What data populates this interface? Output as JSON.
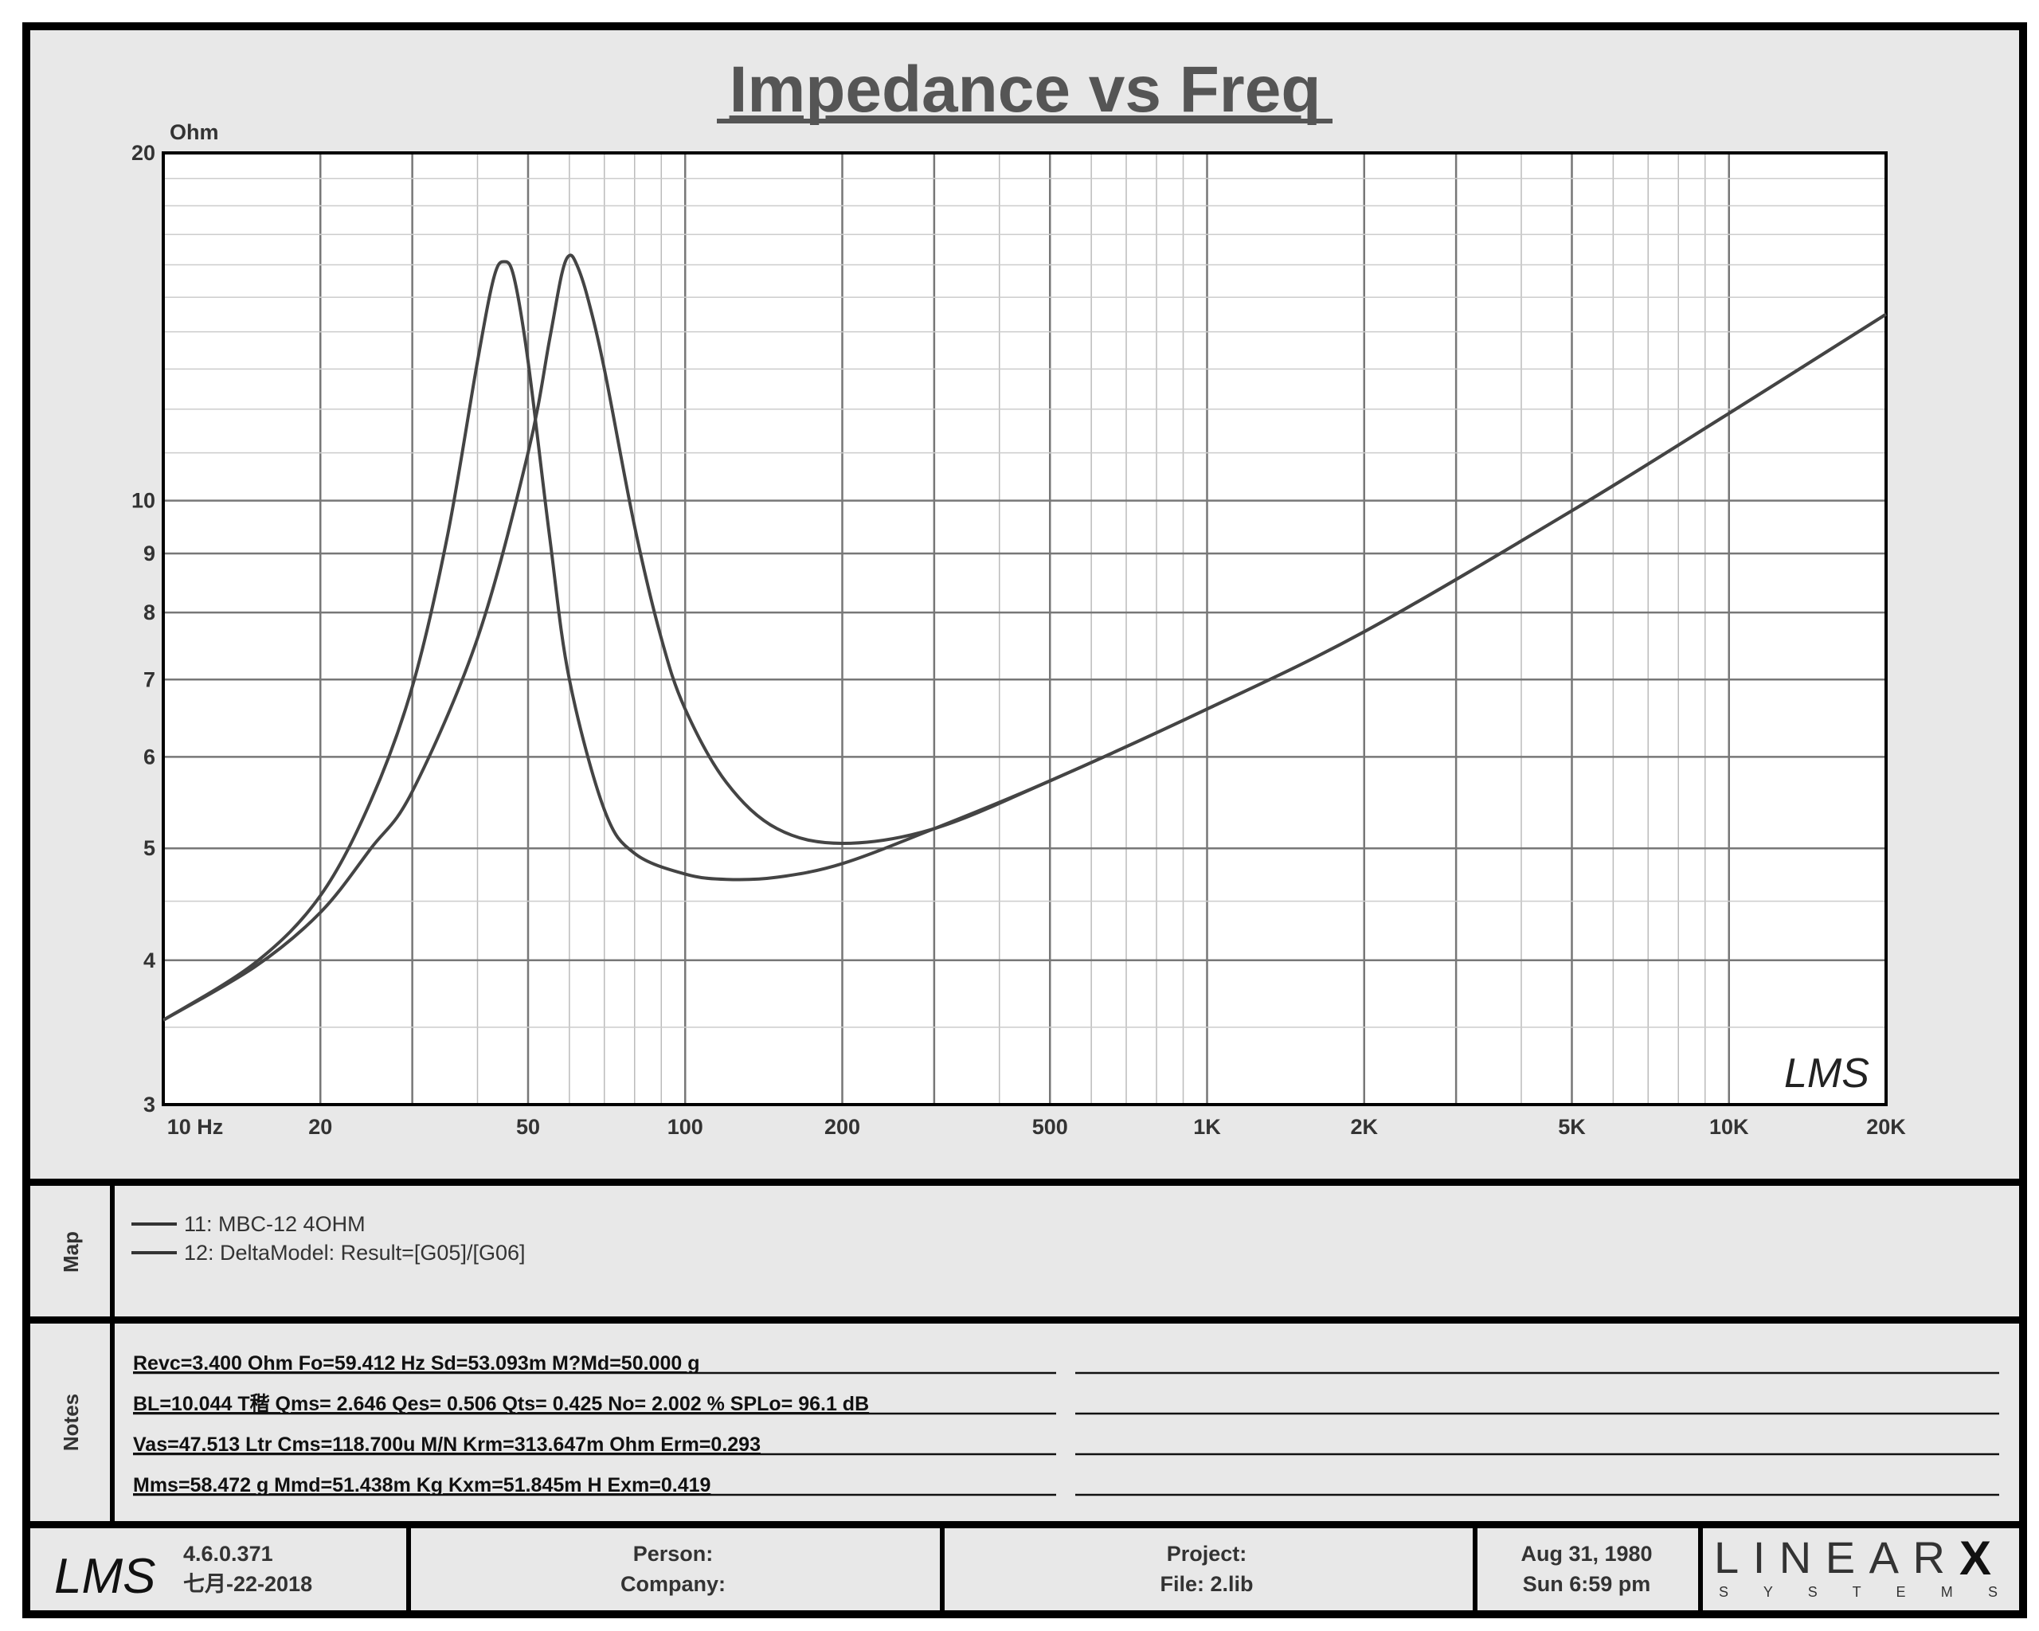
{
  "chart_data": {
    "type": "line",
    "title": "Impedance vs Freq",
    "ylabel": "Ohm",
    "xlabel": "Hz",
    "xscale": "log",
    "yscale": "log",
    "xlim": [
      10,
      20000
    ],
    "ylim": [
      3,
      20
    ],
    "grid": true,
    "x_ticks": [
      {
        "v": 10,
        "label": "10  Hz"
      },
      {
        "v": 20,
        "label": "20"
      },
      {
        "v": 50,
        "label": "50"
      },
      {
        "v": 100,
        "label": "100"
      },
      {
        "v": 200,
        "label": "200"
      },
      {
        "v": 500,
        "label": "500"
      },
      {
        "v": 1000,
        "label": "1K"
      },
      {
        "v": 2000,
        "label": "2K"
      },
      {
        "v": 5000,
        "label": "5K"
      },
      {
        "v": 10000,
        "label": "10K"
      },
      {
        "v": 20000,
        "label": "20K"
      }
    ],
    "y_ticks": [
      {
        "v": 3,
        "label": "3"
      },
      {
        "v": 4,
        "label": "4"
      },
      {
        "v": 5,
        "label": "5"
      },
      {
        "v": 6,
        "label": "6"
      },
      {
        "v": 7,
        "label": "7"
      },
      {
        "v": 8,
        "label": "8"
      },
      {
        "v": 9,
        "label": "9"
      },
      {
        "v": 10,
        "label": "10"
      },
      {
        "v": 20,
        "label": "20"
      }
    ],
    "series": [
      {
        "name": "11: MBC-12  4OHM",
        "x": [
          10,
          15,
          20,
          25,
          30,
          35,
          40,
          43,
          45,
          47,
          50,
          55,
          60,
          70,
          80,
          100,
          120,
          150,
          200,
          300,
          500,
          1000,
          2000,
          5000,
          10000,
          20000
        ],
        "y": [
          3.55,
          3.98,
          4.55,
          5.5,
          6.9,
          9.3,
          13.2,
          15.6,
          16.1,
          15.6,
          13.2,
          9.3,
          7.0,
          5.4,
          4.95,
          4.75,
          4.7,
          4.72,
          4.85,
          5.2,
          5.72,
          6.6,
          7.7,
          9.8,
          11.9,
          14.5
        ]
      },
      {
        "name": "12: DeltaModel: Result=[G05]/[G06]",
        "x": [
          10,
          15,
          20,
          25,
          30,
          40,
          50,
          55,
          58,
          60,
          62,
          65,
          70,
          80,
          90,
          100,
          120,
          150,
          200,
          300,
          500,
          1000,
          2000,
          5000,
          10000,
          20000
        ],
        "y": [
          3.55,
          3.95,
          4.4,
          5.0,
          5.6,
          7.6,
          11.0,
          13.8,
          15.7,
          16.3,
          16.0,
          15.0,
          13.0,
          9.5,
          7.6,
          6.6,
          5.7,
          5.2,
          5.05,
          5.2,
          5.72,
          6.6,
          7.7,
          9.8,
          11.9,
          14.5
        ]
      }
    ]
  },
  "map": {
    "label": "Map",
    "entries": [
      "11: MBC-12  4OHM",
      "12: DeltaModel: Result=[G05]/[G06]"
    ]
  },
  "notes": {
    "label": "Notes",
    "lines": [
      "Revc=3.400 Ohm  Fo=59.412 Hz  Sd=53.093m M?Md=50.000 g",
      "BL=10.044 T稭  Qms= 2.646  Qes= 0.506  Qts= 0.425  No= 2.002 %  SPLo= 96.1 dB",
      "Vas=47.513 Ltr  Cms=118.700u M/N  Krm=313.647m Ohm  Erm=0.293",
      "Mms=58.472 g  Mmd=51.438m Kg  Kxm=51.845m H  Exm=0.419"
    ]
  },
  "footer": {
    "logo": "LMS",
    "version": "4.6.0.371",
    "date_code": "七月-22-2018",
    "person": "Person:",
    "company": "Company:",
    "project": "Project:",
    "file": "File: 2.lib",
    "date": "Aug 31, 1980",
    "time": "Sun  6:59 pm",
    "brand": "LINEAR",
    "brand_x": "X",
    "brand_sub": "S Y S T E M S"
  },
  "watermark": "LMS",
  "colors": {
    "background": "#e8e8e8",
    "curve": "#444444",
    "border": "#000000"
  }
}
